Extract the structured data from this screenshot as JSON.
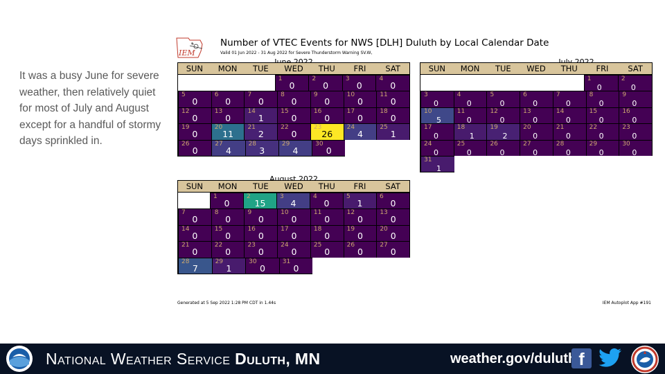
{
  "intro_text": "It was a busy June for severe weather, then relatively quiet for most of July and August except for a handful of stormy days sprinkled in.",
  "figure": {
    "logo_text": "IEM",
    "title": "Number of VTEC Events for NWS [DLH] Duluth by Local Calendar Date",
    "subtitle": "Valid 01 Jun 2022 - 31 Aug 2022 for Severe Thunderstorm Warning SV.W,",
    "footer_left": "Generated at 5 Sep 2022 1:28 PM CDT in 1.44s",
    "footer_right": "IEM Autoplot App #191",
    "weekdays": [
      "SUN",
      "MON",
      "TUE",
      "WED",
      "THU",
      "FRI",
      "SAT"
    ],
    "months": [
      {
        "id": "june",
        "title": "June 2022",
        "weeks": [
          [
            null,
            null,
            null,
            {
              "day": "1",
              "count": "0"
            },
            {
              "day": "2",
              "count": "0"
            },
            {
              "day": "3",
              "count": "0"
            },
            {
              "day": "4",
              "count": "0"
            }
          ],
          [
            {
              "day": "5",
              "count": "0"
            },
            {
              "day": "6",
              "count": "0"
            },
            {
              "day": "7",
              "count": "0"
            },
            {
              "day": "8",
              "count": "0"
            },
            {
              "day": "9",
              "count": "0"
            },
            {
              "day": "10",
              "count": "0"
            },
            {
              "day": "11",
              "count": "0"
            }
          ],
          [
            {
              "day": "12",
              "count": "0"
            },
            {
              "day": "13",
              "count": "0"
            },
            {
              "day": "14",
              "count": "1"
            },
            {
              "day": "15",
              "count": "0"
            },
            {
              "day": "16",
              "count": "0"
            },
            {
              "day": "17",
              "count": "0"
            },
            {
              "day": "18",
              "count": "0"
            }
          ],
          [
            {
              "day": "19",
              "count": "0"
            },
            {
              "day": "20",
              "count": "11"
            },
            {
              "day": "21",
              "count": "2"
            },
            {
              "day": "22",
              "count": "0"
            },
            {
              "day": "23",
              "count": "26"
            },
            {
              "day": "24",
              "count": "4"
            },
            {
              "day": "25",
              "count": "1"
            }
          ],
          [
            {
              "day": "26",
              "count": "0"
            },
            {
              "day": "27",
              "count": "4"
            },
            {
              "day": "28",
              "count": "3"
            },
            {
              "day": "29",
              "count": "4"
            },
            {
              "day": "30",
              "count": "0"
            },
            null,
            null
          ]
        ]
      },
      {
        "id": "july",
        "title": "July 2022",
        "weeks": [
          [
            null,
            null,
            null,
            null,
            null,
            {
              "day": "1",
              "count": "0"
            },
            {
              "day": "2",
              "count": "0"
            }
          ],
          [
            {
              "day": "3",
              "count": "0"
            },
            {
              "day": "4",
              "count": "0"
            },
            {
              "day": "5",
              "count": "0"
            },
            {
              "day": "6",
              "count": "0"
            },
            {
              "day": "7",
              "count": "0"
            },
            {
              "day": "8",
              "count": "0"
            },
            {
              "day": "9",
              "count": "0"
            }
          ],
          [
            {
              "day": "10",
              "count": "5"
            },
            {
              "day": "11",
              "count": "0"
            },
            {
              "day": "12",
              "count": "0"
            },
            {
              "day": "13",
              "count": "0"
            },
            {
              "day": "14",
              "count": "0"
            },
            {
              "day": "15",
              "count": "0"
            },
            {
              "day": "16",
              "count": "0"
            }
          ],
          [
            {
              "day": "17",
              "count": "0"
            },
            {
              "day": "18",
              "count": "1"
            },
            {
              "day": "19",
              "count": "2"
            },
            {
              "day": "20",
              "count": "0"
            },
            {
              "day": "21",
              "count": "0"
            },
            {
              "day": "22",
              "count": "0"
            },
            {
              "day": "23",
              "count": "0"
            }
          ],
          [
            {
              "day": "24",
              "count": "0"
            },
            {
              "day": "25",
              "count": "0"
            },
            {
              "day": "26",
              "count": "0"
            },
            {
              "day": "27",
              "count": "0"
            },
            {
              "day": "28",
              "count": "0"
            },
            {
              "day": "29",
              "count": "0"
            },
            {
              "day": "30",
              "count": "0"
            }
          ],
          [
            {
              "day": "31",
              "count": "1"
            },
            null,
            null,
            null,
            null,
            null,
            null
          ]
        ]
      },
      {
        "id": "august",
        "title": "August 2022",
        "weeks": [
          [
            null,
            {
              "day": "1",
              "count": "0"
            },
            {
              "day": "2",
              "count": "15"
            },
            {
              "day": "3",
              "count": "4"
            },
            {
              "day": "4",
              "count": "0"
            },
            {
              "day": "5",
              "count": "1"
            },
            {
              "day": "6",
              "count": "0"
            }
          ],
          [
            {
              "day": "7",
              "count": "0"
            },
            {
              "day": "8",
              "count": "0"
            },
            {
              "day": "9",
              "count": "0"
            },
            {
              "day": "10",
              "count": "0"
            },
            {
              "day": "11",
              "count": "0"
            },
            {
              "day": "12",
              "count": "0"
            },
            {
              "day": "13",
              "count": "0"
            }
          ],
          [
            {
              "day": "14",
              "count": "0"
            },
            {
              "day": "15",
              "count": "0"
            },
            {
              "day": "16",
              "count": "0"
            },
            {
              "day": "17",
              "count": "0"
            },
            {
              "day": "18",
              "count": "0"
            },
            {
              "day": "19",
              "count": "0"
            },
            {
              "day": "20",
              "count": "0"
            }
          ],
          [
            {
              "day": "21",
              "count": "0"
            },
            {
              "day": "22",
              "count": "0"
            },
            {
              "day": "23",
              "count": "0"
            },
            {
              "day": "24",
              "count": "0"
            },
            {
              "day": "25",
              "count": "0"
            },
            {
              "day": "26",
              "count": "0"
            },
            {
              "day": "27",
              "count": "0"
            }
          ],
          [
            {
              "day": "28",
              "count": "7"
            },
            {
              "day": "29",
              "count": "1"
            },
            {
              "day": "30",
              "count": "0"
            },
            {
              "day": "31",
              "count": "0"
            },
            null,
            null,
            null
          ]
        ]
      }
    ],
    "colors": {
      "zero": "#440154",
      "c1": "#481b6d",
      "c2": "#482173",
      "c3": "#46307e",
      "c4": "#433e85",
      "c5": "#3f4889",
      "c7": "#39568c",
      "c11": "#2d708e",
      "c15": "#20a386",
      "c26": "#fde725",
      "header": "#d8c59c"
    }
  },
  "footer": {
    "title_prefix": "National Weather Service ",
    "title_office": "Duluth, MN",
    "url": "weather.gov/duluth",
    "facebook_glyph": "f",
    "background": "#081224"
  }
}
